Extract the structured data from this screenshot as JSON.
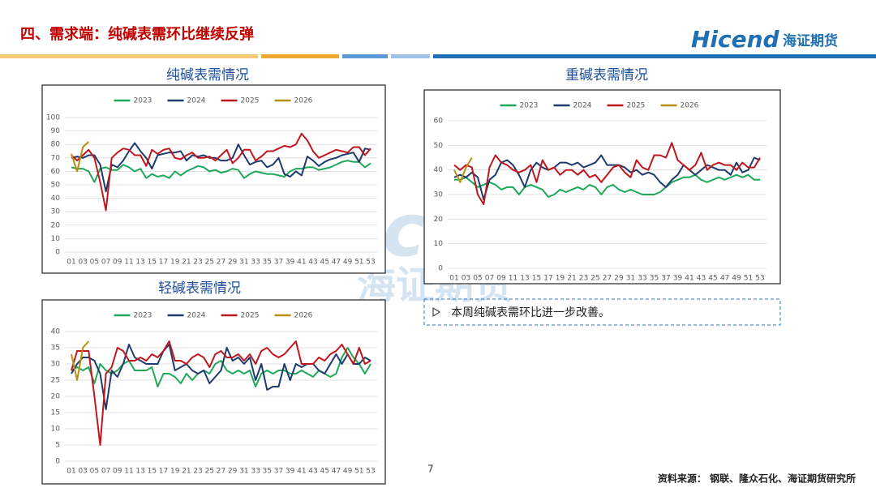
{
  "header": {
    "title": "四、需求端：纯碱表需环比继续反弹",
    "logo": "Hicend",
    "logo_sub": "海证期货"
  },
  "chart_data": [
    {
      "type": "line",
      "title": "纯碱表需情况",
      "categories": [
        "01",
        null,
        "03",
        null,
        "05",
        null,
        "07",
        null,
        "09",
        null,
        "11",
        null,
        "13",
        null,
        "15",
        null,
        "17",
        null,
        "19",
        null,
        "21",
        null,
        "23",
        null,
        "25",
        null,
        "27",
        null,
        "29",
        null,
        "31",
        null,
        "33",
        null,
        "35",
        null,
        "37",
        null,
        "39",
        null,
        "41",
        null,
        "43",
        null,
        "45",
        null,
        "47",
        null,
        "49",
        null,
        "51",
        null,
        "53"
      ],
      "ylim": [
        0,
        100
      ],
      "yticks": [
        0,
        10,
        20,
        30,
        40,
        50,
        60,
        70,
        80,
        90,
        100
      ],
      "grid": true,
      "legend": "top",
      "series": [
        {
          "name": "2023",
          "color": "#1fa75a",
          "values": [
            63,
            62,
            62,
            60,
            52,
            62,
            63,
            61,
            61,
            65,
            63,
            60,
            62,
            55,
            58,
            56,
            57,
            55,
            60,
            57,
            60,
            62,
            64,
            63,
            60,
            61,
            59,
            60,
            62,
            61,
            55,
            58,
            60,
            59,
            58,
            58,
            57,
            56,
            60,
            62,
            62,
            63,
            63,
            61,
            62,
            63,
            65,
            67,
            68,
            67,
            67,
            63,
            66
          ]
        },
        {
          "name": "2024",
          "color": "#1f3a6e",
          "values": [
            70,
            71,
            70,
            72,
            72,
            65,
            45,
            65,
            63,
            68,
            75,
            81,
            75,
            70,
            62,
            72,
            73,
            74,
            74,
            75,
            68,
            72,
            71,
            72,
            70,
            70,
            68,
            68,
            70,
            80,
            72,
            65,
            67,
            68,
            63,
            65,
            70,
            58,
            56,
            60,
            57,
            71,
            68,
            64,
            67,
            69,
            70,
            72,
            73,
            74,
            67,
            77,
            76
          ]
        },
        {
          "name": "2025",
          "color": "#c0171e",
          "values": [
            72,
            68,
            72,
            76,
            70,
            52,
            31,
            70,
            74,
            77,
            76,
            72,
            72,
            64,
            76,
            73,
            76,
            77,
            70,
            69,
            72,
            74,
            70,
            70,
            71,
            68,
            72,
            76,
            66,
            70,
            76,
            76,
            68,
            71,
            75,
            75,
            77,
            79,
            78,
            80,
            88,
            83,
            75,
            70,
            72,
            74,
            76,
            75,
            74,
            78,
            78,
            72,
            77
          ]
        },
        {
          "name": "2026",
          "color": "#b8900f",
          "values": [
            73,
            60,
            78,
            82,
            null,
            null,
            null,
            null,
            null,
            null,
            null,
            null,
            null,
            null,
            null,
            null,
            null,
            null,
            null,
            null,
            null,
            null,
            null,
            null,
            null,
            null,
            null,
            null,
            null,
            null,
            null,
            null,
            null,
            null,
            null,
            null,
            null,
            null,
            null,
            null,
            null,
            null,
            null,
            null,
            null,
            null,
            null,
            null,
            null,
            null,
            null,
            null,
            null
          ]
        }
      ]
    },
    {
      "type": "line",
      "title": "重碱表需情况",
      "categories": [
        "01",
        null,
        "03",
        null,
        "05",
        null,
        "07",
        null,
        "09",
        null,
        "11",
        null,
        "13",
        null,
        "15",
        null,
        "17",
        null,
        "19",
        null,
        "21",
        null,
        "23",
        null,
        "25",
        null,
        "27",
        null,
        "29",
        null,
        "31",
        null,
        "33",
        null,
        "35",
        null,
        "37",
        null,
        "39",
        null,
        "41",
        null,
        "43",
        null,
        "45",
        null,
        "47",
        null,
        "49",
        null,
        "51",
        null,
        "53"
      ],
      "ylim": [
        0,
        60
      ],
      "yticks": [
        0,
        10,
        20,
        30,
        40,
        50,
        60
      ],
      "grid": true,
      "legend": "top",
      "series": [
        {
          "name": "2023",
          "color": "#1fa75a",
          "values": [
            36,
            36,
            37,
            35,
            33,
            34,
            35,
            34,
            32,
            33,
            33,
            30,
            33,
            34,
            33,
            32,
            29,
            30,
            32,
            31,
            32,
            33,
            32,
            34,
            33,
            30,
            33,
            34,
            32,
            31,
            32,
            31,
            30,
            30,
            30,
            31,
            33,
            35,
            36,
            37,
            37,
            38,
            36,
            35,
            36,
            37,
            36,
            37,
            38,
            37,
            38,
            36,
            36
          ]
        },
        {
          "name": "2024",
          "color": "#1f3a6e",
          "values": [
            37,
            38,
            37,
            39,
            37,
            28,
            36,
            38,
            43,
            44,
            42,
            38,
            33,
            40,
            43,
            41,
            40,
            41,
            43,
            43,
            42,
            43,
            41,
            42,
            43,
            46,
            42,
            42,
            42,
            41,
            39,
            40,
            38,
            39,
            38,
            35,
            33,
            36,
            38,
            42,
            40,
            38,
            40,
            42,
            41,
            40,
            40,
            38,
            43,
            39,
            40,
            45,
            44
          ]
        },
        {
          "name": "2025",
          "color": "#c0171e",
          "values": [
            42,
            40,
            42,
            41,
            30,
            26,
            41,
            46,
            43,
            42,
            40,
            39,
            40,
            42,
            35,
            44,
            40,
            41,
            38,
            40,
            40,
            38,
            40,
            37,
            38,
            35,
            38,
            41,
            42,
            39,
            37,
            44,
            41,
            40,
            46,
            46,
            45,
            51,
            44,
            42,
            40,
            42,
            47,
            40,
            42,
            43,
            42,
            42,
            40,
            43,
            41,
            41,
            45
          ]
        },
        {
          "name": "2026",
          "color": "#b8900f",
          "values": [
            40,
            35,
            41,
            45,
            null,
            null,
            null,
            null,
            null,
            null,
            null,
            null,
            null,
            null,
            null,
            null,
            null,
            null,
            null,
            null,
            null,
            null,
            null,
            null,
            null,
            null,
            null,
            null,
            null,
            null,
            null,
            null,
            null,
            null,
            null,
            null,
            null,
            null,
            null,
            null,
            null,
            null,
            null,
            null,
            null,
            null,
            null,
            null,
            null,
            null,
            null,
            null,
            null
          ]
        }
      ]
    },
    {
      "type": "line",
      "title": "轻碱表需情况",
      "categories": [
        "01",
        null,
        "03",
        null,
        "05",
        null,
        "07",
        null,
        "09",
        null,
        "11",
        null,
        "13",
        null,
        "15",
        null,
        "17",
        null,
        "19",
        null,
        "21",
        null,
        "23",
        null,
        "25",
        null,
        "27",
        null,
        "29",
        null,
        "31",
        null,
        "33",
        null,
        "35",
        null,
        "37",
        null,
        "39",
        null,
        "41",
        null,
        "43",
        null,
        "45",
        null,
        "47",
        null,
        "49",
        null,
        "51",
        null,
        "53"
      ],
      "ylim": [
        0,
        40
      ],
      "yticks": [
        0,
        5,
        10,
        15,
        20,
        25,
        30,
        35,
        40
      ],
      "grid": true,
      "legend": "top",
      "series": [
        {
          "name": "2023",
          "color": "#1fa75a",
          "values": [
            28,
            29,
            28,
            29,
            24,
            30,
            28,
            27,
            28,
            30,
            31,
            28,
            28,
            28,
            29,
            23,
            27,
            27,
            26,
            24,
            27,
            25,
            27,
            28,
            27,
            30,
            31,
            28,
            27,
            28,
            27,
            28,
            23,
            27,
            28,
            27,
            28,
            28,
            27,
            27,
            28,
            27,
            26,
            28,
            27,
            26,
            27,
            32,
            35,
            32,
            30,
            27,
            30
          ]
        },
        {
          "name": "2024",
          "color": "#1f3a6e",
          "values": [
            27,
            30,
            32,
            32,
            31,
            27,
            16,
            28,
            26,
            30,
            36,
            32,
            31,
            30,
            30,
            30,
            34,
            36,
            28,
            29,
            30,
            28,
            27,
            28,
            24,
            26,
            28,
            35,
            31,
            32,
            30,
            32,
            25,
            30,
            22,
            23,
            23,
            30,
            25,
            30,
            29,
            30,
            30,
            28,
            27,
            30,
            33,
            30,
            33,
            30,
            30,
            32,
            31
          ]
        },
        {
          "name": "2025",
          "color": "#c0171e",
          "values": [
            28,
            34,
            34,
            34,
            20,
            5,
            27,
            29,
            35,
            34,
            31,
            31,
            32,
            31,
            33,
            32,
            34,
            37,
            31,
            31,
            30,
            32,
            33,
            32,
            29,
            33,
            34,
            32,
            32,
            33,
            31,
            33,
            30,
            34,
            35,
            33,
            32,
            33,
            35,
            37,
            30,
            30,
            30,
            32,
            31,
            33,
            34,
            36,
            33,
            30,
            35,
            30,
            31
          ]
        },
        {
          "name": "2026",
          "color": "#b8900f",
          "values": [
            33,
            25,
            35,
            37,
            null,
            null,
            null,
            null,
            null,
            null,
            null,
            null,
            null,
            null,
            null,
            null,
            null,
            null,
            null,
            null,
            null,
            null,
            null,
            null,
            null,
            null,
            null,
            null,
            null,
            null,
            null,
            null,
            null,
            null,
            null,
            null,
            null,
            null,
            null,
            null,
            null,
            null,
            null,
            null,
            null,
            null,
            null,
            null,
            null,
            null,
            null,
            null,
            null
          ]
        }
      ]
    }
  ],
  "note": "本周纯碱表需环比进一步改善。",
  "page_number": "7",
  "source": "资料来源： 钢联、隆众石化、海证期货研究所"
}
